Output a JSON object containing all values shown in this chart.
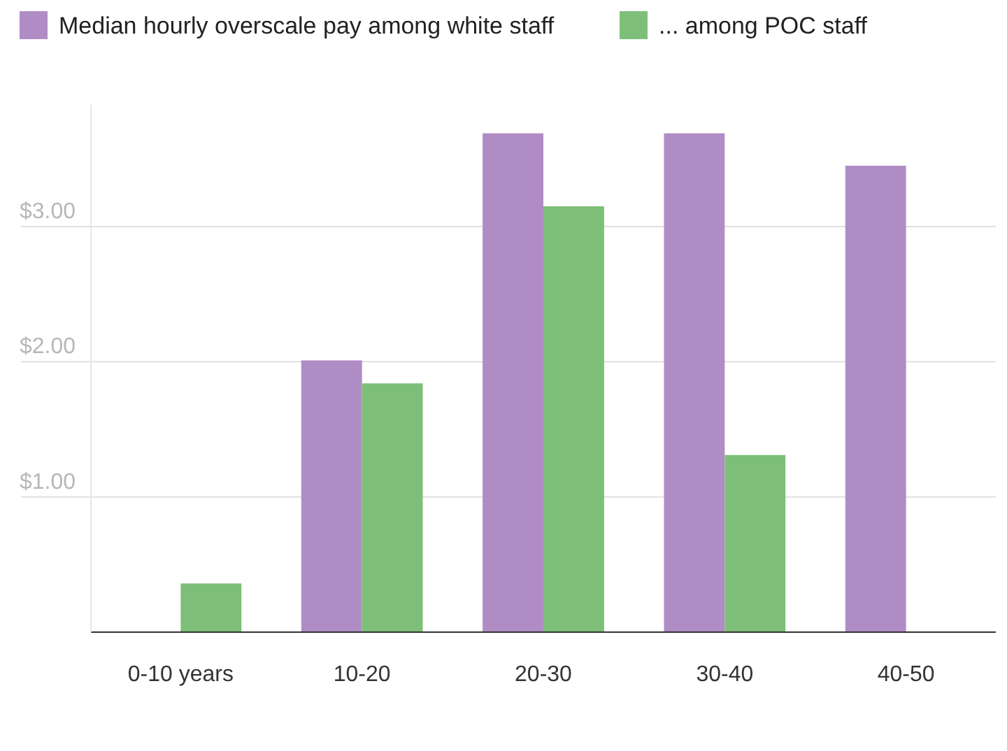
{
  "chart_data": {
    "type": "bar",
    "categories": [
      "0-10 years",
      "10-20",
      "20-30",
      "30-40",
      "40-50"
    ],
    "series": [
      {
        "name": "Median hourly overscale pay among white staff",
        "color": "#b08cc5",
        "values": [
          null,
          2.01,
          3.69,
          3.69,
          3.45
        ]
      },
      {
        "name": "... among POC staff",
        "color": "#7dbf78",
        "values": [
          0.36,
          1.84,
          3.15,
          1.31,
          null
        ]
      }
    ],
    "yticks": [
      {
        "value": 0,
        "label": null
      },
      {
        "value": 1,
        "label": "$1.00"
      },
      {
        "value": 2,
        "label": "$2.00"
      },
      {
        "value": 3,
        "label": "$3.00"
      }
    ],
    "ylim": [
      0,
      3.9
    ],
    "grid": "y",
    "legend": "top left"
  }
}
